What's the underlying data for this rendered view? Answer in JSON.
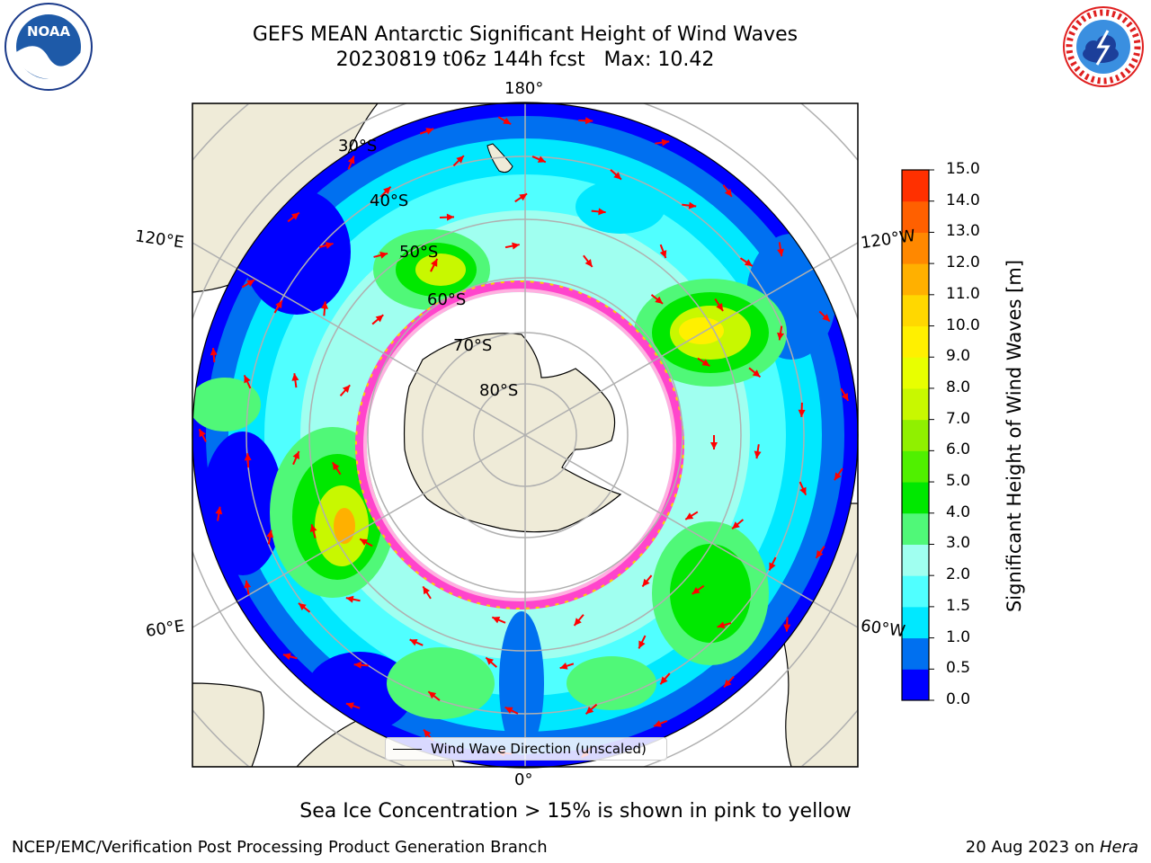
{
  "title": {
    "line1": "GEFS MEAN Antarctic Significant Height of Wind Waves",
    "line2": "20230819 t06z 144h fcst   Max: 10.42"
  },
  "map": {
    "longitude_labels": {
      "top": "180°",
      "bottom": "0°",
      "upper_left": "120°E",
      "upper_right": "120°W",
      "lower_left": "60°E",
      "lower_right": "60°W"
    },
    "latitude_labels": [
      "30°S",
      "40°S",
      "50°S",
      "60°S",
      "70°S",
      "80°S"
    ],
    "legend_label": "Wind Wave Direction (unscaled)"
  },
  "colorbar": {
    "label": "Significant Height of Wind Waves [m]",
    "ticks": [
      "15.0",
      "14.0",
      "13.0",
      "12.0",
      "11.0",
      "10.0",
      "9.0",
      "8.0",
      "7.0",
      "6.0",
      "5.0",
      "4.0",
      "3.0",
      "2.0",
      "1.5",
      "1.0",
      "0.5",
      "0.0"
    ],
    "colors": [
      "#0000ff",
      "#0070f0",
      "#00e8ff",
      "#50ffff",
      "#a0fff0",
      "#50f878",
      "#00e800",
      "#50f000",
      "#90f000",
      "#c8f800",
      "#e8ff00",
      "#fff000",
      "#ffd800",
      "#ffb000",
      "#ff8800",
      "#ff6000",
      "#ff3000",
      "#ff0000"
    ]
  },
  "note": "Sea Ice Concentration > 15% is shown in pink to yellow",
  "footer": {
    "left": "NCEP/EMC/Verification Post Processing Product Generation Branch",
    "right_prefix": "20 Aug 2023 on ",
    "right_italic": "Hera"
  },
  "logos": {
    "noaa_text": "NOAA",
    "nws_text": "NATIONAL WEATHER SERVICE"
  },
  "style": {
    "land": "#efebd8",
    "ice_edge": "#ff44cc",
    "arrow": "#ff0000",
    "grid": "#b0b0b0"
  }
}
